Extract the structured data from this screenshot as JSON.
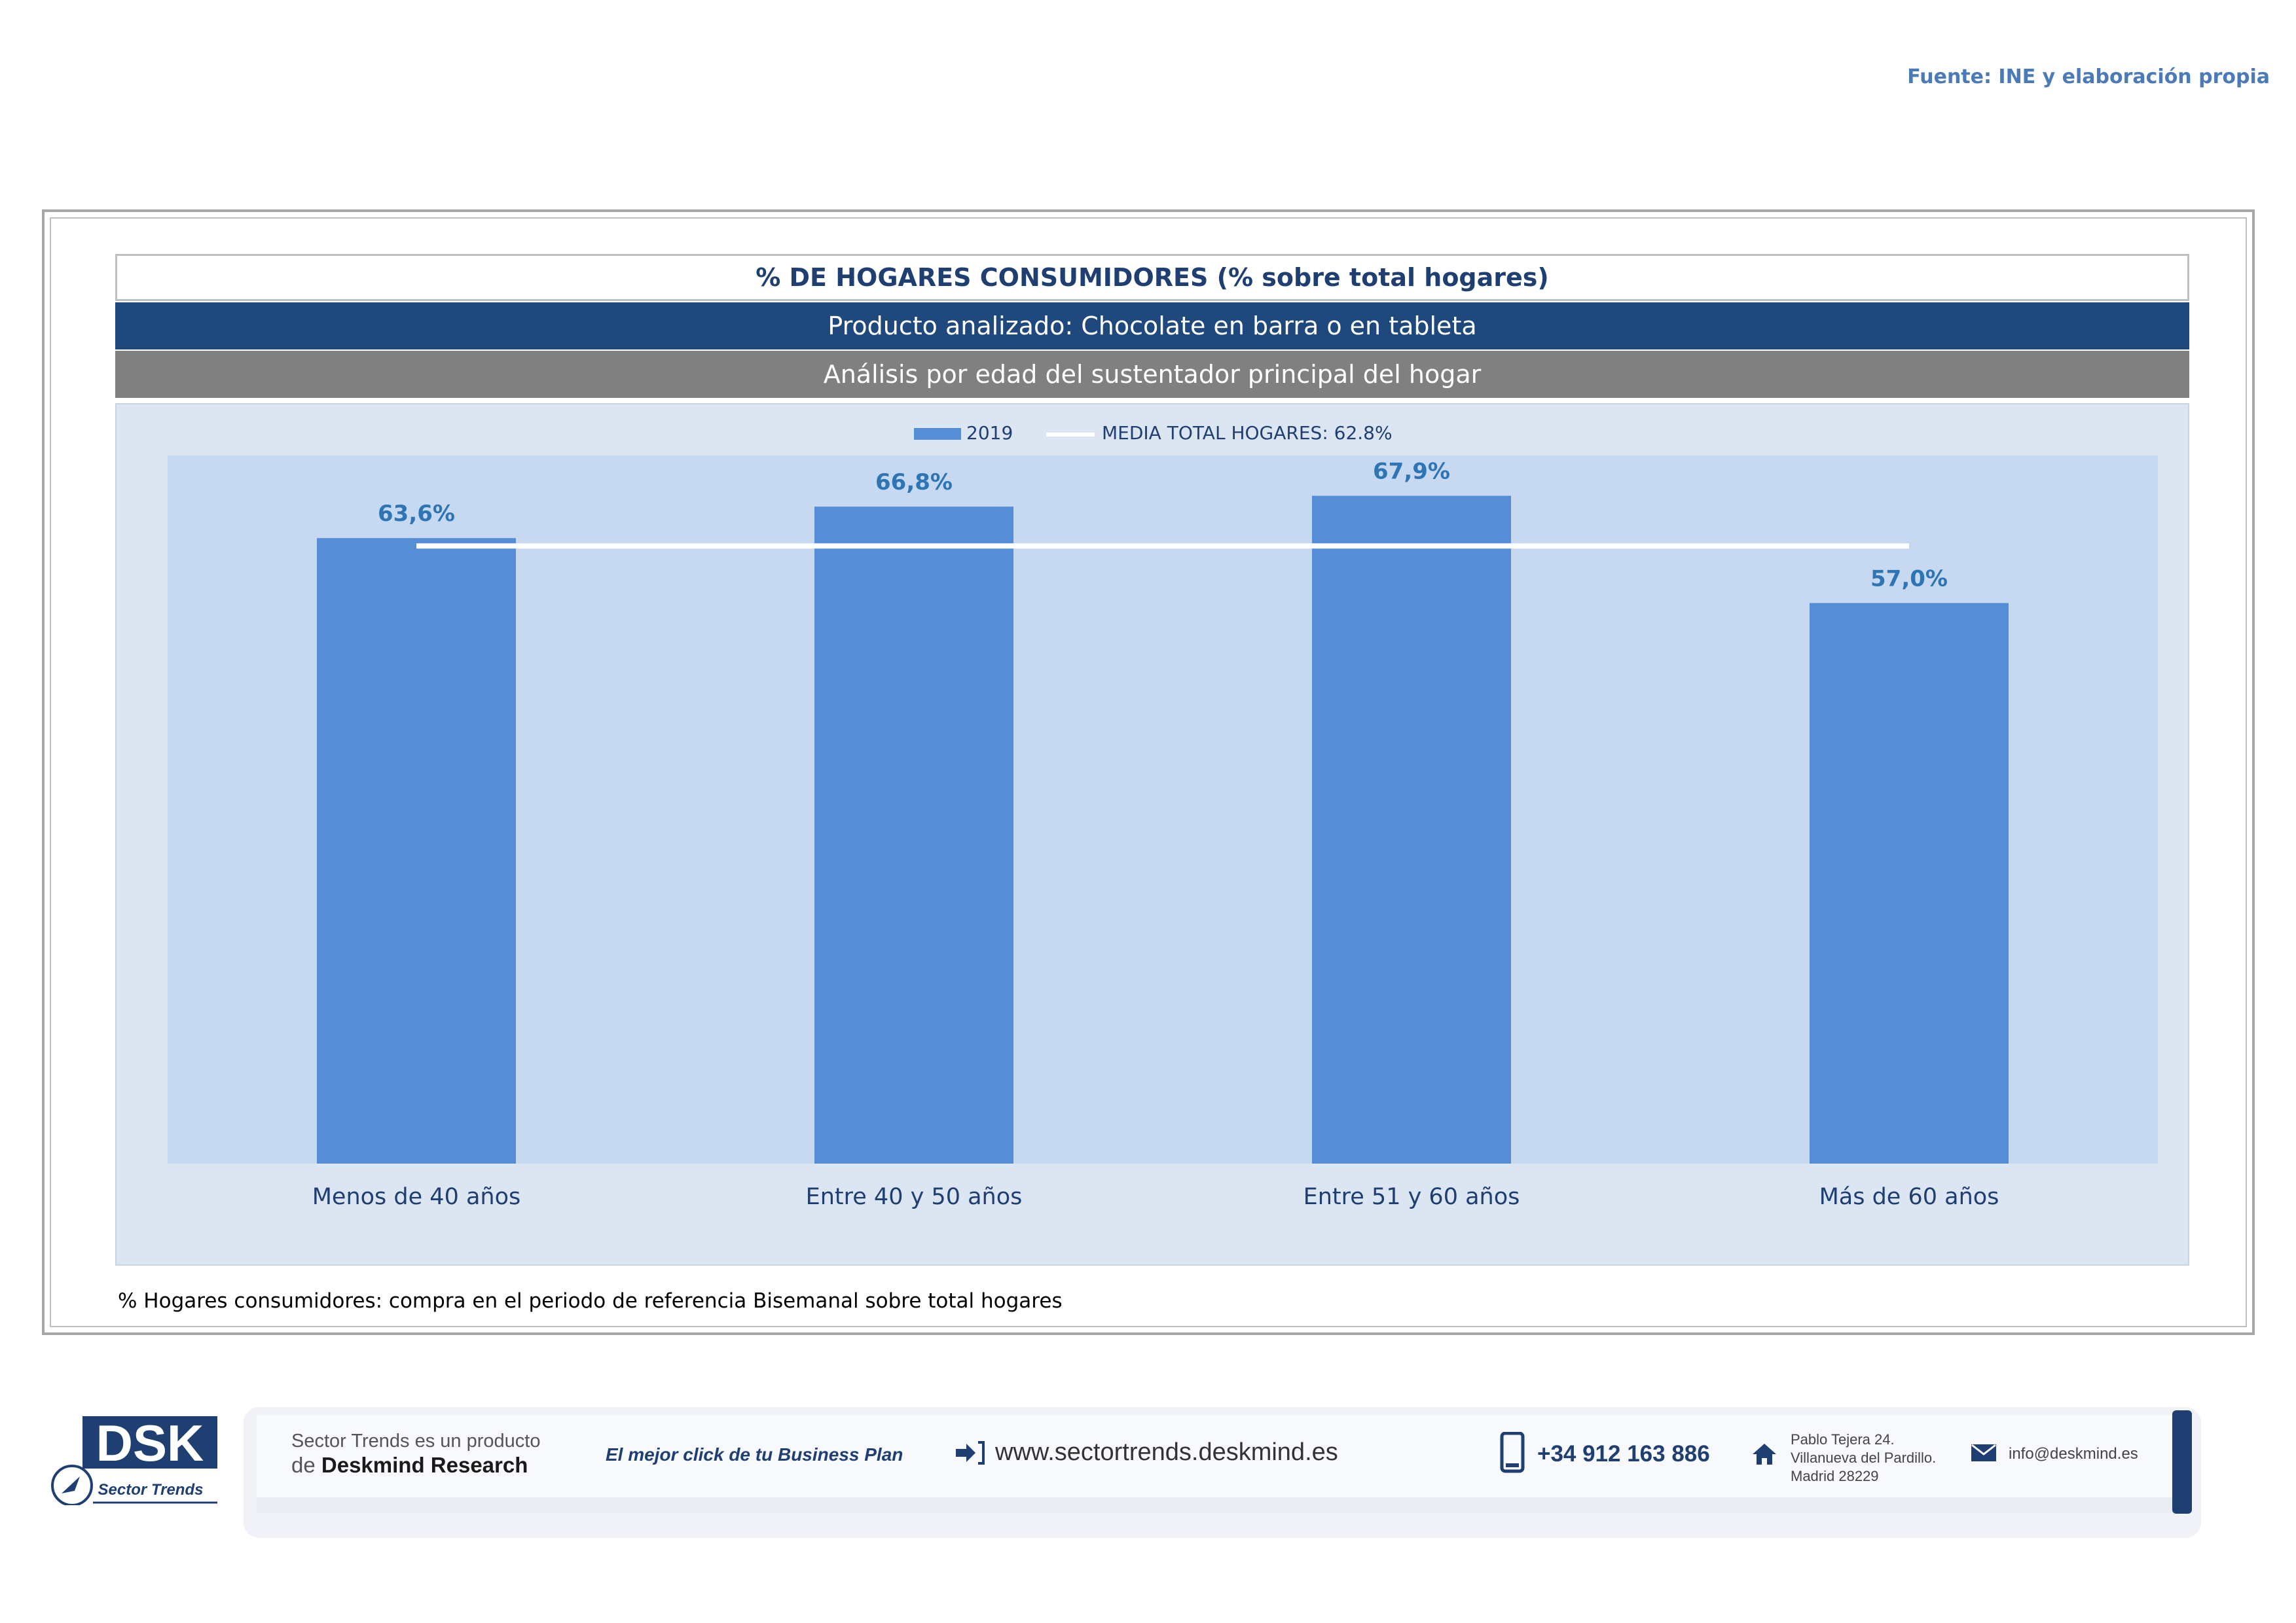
{
  "header": {
    "source": "Fuente: INE y elaboración propia"
  },
  "panel": {
    "title": "% DE HOGARES CONSUMIDORES (% sobre total hogares)",
    "product": "Producto analizado: Chocolate en barra o en tableta",
    "analysis": "Análisis por edad del sustentador principal del hogar",
    "footnote": "% Hogares consumidores: compra en el periodo de referencia Bisemanal sobre total hogares"
  },
  "chart_data": {
    "type": "bar",
    "title": "",
    "xlabel": "",
    "ylabel": "",
    "categories": [
      "Menos de 40 años",
      "Entre 40 y 50 años",
      "Entre 51  y 60 años",
      "Más de 60 años"
    ],
    "series": [
      {
        "name": "2019",
        "values": [
          63.6,
          66.8,
          67.9,
          57.0
        ],
        "labels": [
          "63,6%",
          "66,8%",
          "67,9%",
          "57,0%"
        ],
        "color": "#558ed5"
      }
    ],
    "reference_line": {
      "name": "MEDIA TOTAL  HOGARES:  62.8%",
      "value": 62.8,
      "color": "#ffffff"
    },
    "ylim": [
      0,
      72
    ],
    "legend_position": "top-center",
    "colors": {
      "plot_background": "#c6d9f1",
      "outer_background": "#dce6f2",
      "label_color": "#2e75b6",
      "axis_label_color": "#1f3f73"
    }
  },
  "footer": {
    "logo_text": "DSK",
    "logo_subtitle": "Sector Trends",
    "product_line1": "Sector Trends es un producto",
    "product_line2_prefix": "de",
    "product_line2_brand": "Deskmind Research",
    "slogan": "El mejor click de tu Business Plan",
    "web": "www.sectortrends.deskmind.es",
    "phone": "+34 912 163 886",
    "address_line1": "Pablo Tejera 24.",
    "address_line2": "Villanueva del Pardillo.",
    "address_line3": "Madrid 28229",
    "email": "info@deskmind.es"
  }
}
